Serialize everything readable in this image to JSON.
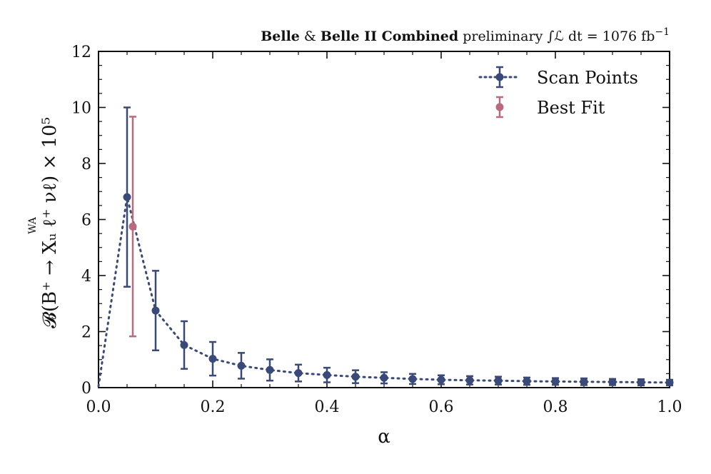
{
  "chart_data": {
    "type": "scatter",
    "title": "",
    "annotation": {
      "bold1": "Belle",
      "amp": " & ",
      "bold2": "Belle II Combined",
      "normal": " preliminary ∫ℒ dt = 1076 fb",
      "exponent": "−1"
    },
    "xlabel": "α",
    "ylabel": "𝓑(B⁺ → Xᵤ ℓ⁺ νℓ) × 10⁵",
    "ylabel_super": "WA",
    "xlim": [
      0.0,
      1.0
    ],
    "ylim": [
      0,
      12
    ],
    "xticks": [
      "0.0",
      "0.2",
      "0.4",
      "0.6",
      "0.8",
      "1.0"
    ],
    "xtick_values": [
      0.0,
      0.2,
      0.4,
      0.6,
      0.8,
      1.0
    ],
    "yticks": [
      "0",
      "2",
      "4",
      "6",
      "8",
      "10",
      "12"
    ],
    "ytick_values": [
      0,
      2,
      4,
      6,
      8,
      10,
      12
    ],
    "legend_position": "top-right",
    "series": [
      {
        "name": "Scan Points",
        "color": "#3a4a78",
        "line_style": "dotted",
        "x": [
          0.0,
          0.05,
          0.1,
          0.15,
          0.2,
          0.25,
          0.3,
          0.35,
          0.4,
          0.45,
          0.5,
          0.55,
          0.6,
          0.65,
          0.7,
          0.75,
          0.8,
          0.85,
          0.9,
          0.95,
          1.0
        ],
        "y": [
          0.05,
          6.8,
          2.75,
          1.52,
          1.03,
          0.78,
          0.63,
          0.52,
          0.45,
          0.39,
          0.35,
          0.31,
          0.28,
          0.26,
          0.25,
          0.23,
          0.22,
          0.21,
          0.2,
          0.19,
          0.18
        ],
        "err": [
          0.0,
          3.2,
          1.42,
          0.85,
          0.6,
          0.46,
          0.38,
          0.3,
          0.26,
          0.23,
          0.2,
          0.18,
          0.16,
          0.15,
          0.14,
          0.13,
          0.12,
          0.12,
          0.11,
          0.11,
          0.1
        ]
      },
      {
        "name": "Best Fit",
        "color": "#b86a7e",
        "line_style": "none",
        "x": [
          0.06
        ],
        "y": [
          5.75
        ],
        "err_low": [
          3.92
        ],
        "err_high": [
          3.92
        ]
      }
    ]
  }
}
